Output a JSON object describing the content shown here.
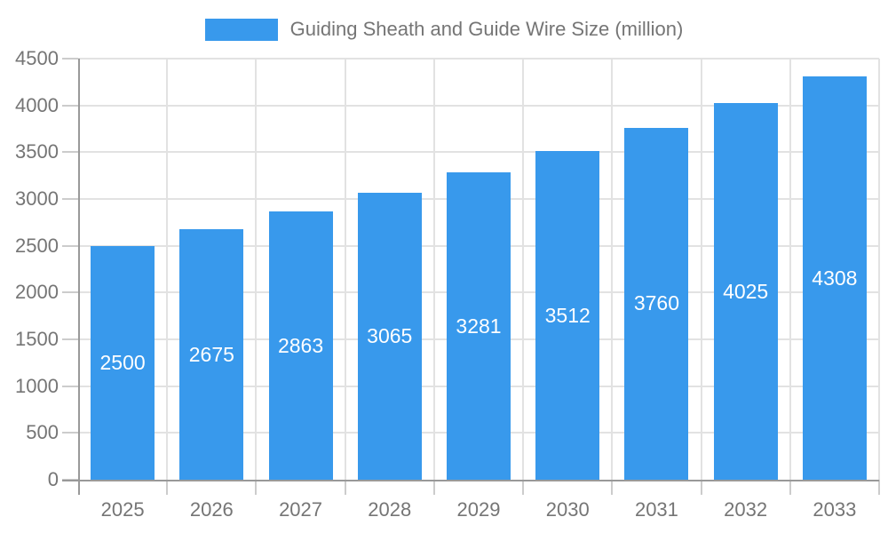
{
  "chart_data": {
    "type": "bar",
    "title": "Guiding Sheath and Guide Wire Size (million)",
    "legend": [
      "Guiding Sheath and Guide Wire Size (million)"
    ],
    "legend_position": "top-center",
    "categories": [
      "2025",
      "2026",
      "2027",
      "2028",
      "2029",
      "2030",
      "2031",
      "2032",
      "2033"
    ],
    "values": [
      2500,
      2675,
      2863,
      3065,
      3281,
      3512,
      3760,
      4025,
      4308
    ],
    "xlabel": "",
    "ylabel": "",
    "ylim": [
      0,
      4500
    ],
    "yticks": [
      0,
      500,
      1000,
      1500,
      2000,
      2500,
      3000,
      3500,
      4000,
      4500
    ],
    "grid": true,
    "value_labels_inside_bars": true,
    "colors": {
      "bar": "#3899EC",
      "bar_value_text": "#FFFFFF",
      "axis_text": "#757575",
      "axis_line": "#999999",
      "tick_mark": "#CCCCCC",
      "gridline": "#E2E2E2",
      "background": "#FFFFFF"
    }
  }
}
